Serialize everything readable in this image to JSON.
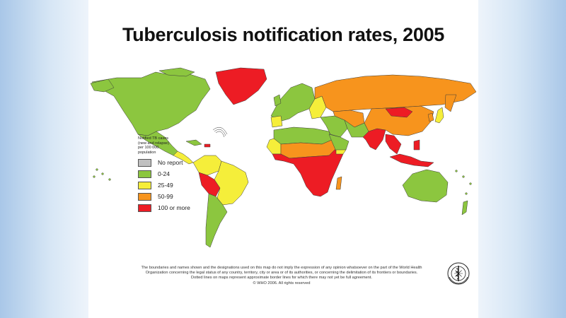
{
  "slide": {
    "title": "Tuberculosis notification rates, 2005"
  },
  "legend": {
    "title": "Notified TB cases (new and relapse) per 100 000 population",
    "items": [
      {
        "label": "No report",
        "color": "#c0c0c0"
      },
      {
        "label": "0-24",
        "color": "#8cc63f"
      },
      {
        "label": "25-49",
        "color": "#f5ee3a"
      },
      {
        "label": "50-99",
        "color": "#f7941d"
      },
      {
        "label": "100 or more",
        "color": "#ed1c24"
      }
    ]
  },
  "map_data": {
    "regions": [
      {
        "name": "North America",
        "category": "0-24"
      },
      {
        "name": "Greenland",
        "category": "100 or more"
      },
      {
        "name": "Mexico",
        "category": "0-24"
      },
      {
        "name": "Central America",
        "category": "25-49"
      },
      {
        "name": "Colombia / Venezuela",
        "category": "25-49"
      },
      {
        "name": "Peru / Bolivia",
        "category": "100 or more"
      },
      {
        "name": "Brazil",
        "category": "25-49"
      },
      {
        "name": "Southern Cone",
        "category": "0-24"
      },
      {
        "name": "Western Europe",
        "category": "0-24"
      },
      {
        "name": "Eastern Europe",
        "category": "25-49"
      },
      {
        "name": "Russia",
        "category": "50-99"
      },
      {
        "name": "North Africa",
        "category": "0-24"
      },
      {
        "name": "Sahel",
        "category": "50-99"
      },
      {
        "name": "Sub-Saharan Africa",
        "category": "100 or more"
      },
      {
        "name": "Middle East",
        "category": "0-24"
      },
      {
        "name": "Central Asia",
        "category": "50-99"
      },
      {
        "name": "South Asia",
        "category": "100 or more"
      },
      {
        "name": "China",
        "category": "50-99"
      },
      {
        "name": "Mongolia",
        "category": "100 or more"
      },
      {
        "name": "South-East Asia",
        "category": "100 or more"
      },
      {
        "name": "Japan",
        "category": "25-49"
      },
      {
        "name": "Australia",
        "category": "0-24"
      }
    ]
  },
  "disclaimer": {
    "line1": "The boundaries and names shown and the designations used on this map do not imply the expression of any opinion whatsoever on the part of the World Health",
    "line2": "Organization concerning the legal status of any country, territory, city or area or of its authorities, or concerning the delimitation of its frontiers or boundaries.",
    "line3": "Dotted lines on maps represent approximate border lines for which there may not yet be full agreement.",
    "line4": "© WHO 2006. All rights reserved"
  },
  "logo": {
    "name": "who-emblem-icon"
  }
}
